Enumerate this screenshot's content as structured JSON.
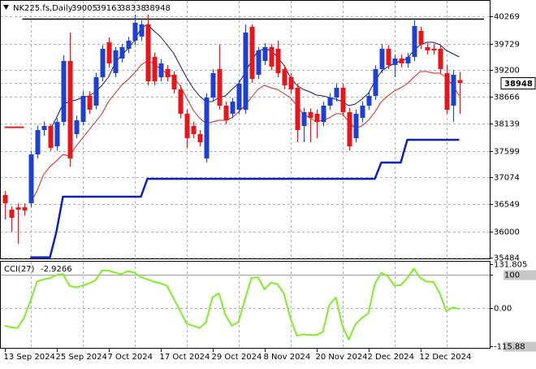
{
  "chart_data": {
    "type": "candlestick",
    "title": "NK225.fs,Daily",
    "categories": [
      "13 Sep 2024",
      null,
      null,
      null,
      null,
      null,
      null,
      null,
      "25 Sep 2024",
      null,
      null,
      null,
      null,
      null,
      null,
      null,
      "7 Oct 2024",
      null,
      null,
      null,
      null,
      null,
      null,
      null,
      "17 Oct 2024",
      null,
      null,
      null,
      null,
      null,
      null,
      null,
      "29 Oct 2024",
      null,
      null,
      null,
      null,
      null,
      null,
      null,
      "8 Nov 2024",
      null,
      null,
      null,
      null,
      null,
      null,
      null,
      "20 Nov 2024",
      null,
      null,
      null,
      null,
      null,
      null,
      null,
      "2 Dec 2024",
      null,
      null,
      null,
      null,
      null,
      null,
      null,
      "12 Dec 2024",
      null,
      null,
      null,
      null,
      null,
      null
    ],
    "ohlc": {
      "open": [
        36725,
        36435,
        36480,
        36483,
        36563,
        37530,
        38013,
        38094,
        37691,
        38174,
        39383,
        37933,
        38174,
        38690,
        38497,
        39061,
        39753,
        39141,
        39431,
        39624,
        39785,
        39866,
        40108,
        39463,
        39061,
        39222,
        39109,
        38819,
        38336,
        38094,
        37933,
        37450,
        38658,
        39222,
        38497,
        38336,
        38416,
        38416,
        40059,
        39109,
        39383,
        39657,
        39624,
        39222,
        39061,
        38851,
        38094,
        38368,
        38336,
        38174,
        38497,
        38658,
        38851,
        38368,
        37852,
        38255,
        38497,
        38690,
        39222,
        39624,
        39302,
        39431,
        39334,
        39463,
        39979,
        39657,
        39624,
        39624,
        39141,
        38497,
        39005
      ],
      "high": [
        36805,
        36500,
        36560,
        36560,
        37600,
        38100,
        38180,
        38130,
        38250,
        39500,
        39947,
        38300,
        38780,
        38780,
        39150,
        39700,
        39850,
        39660,
        39720,
        39860,
        40301,
        40188,
        40301,
        39550,
        39420,
        39300,
        39180,
        38900,
        38420,
        38180,
        38010,
        38740,
        39220,
        39705,
        38580,
        38650,
        39000,
        40108,
        40108,
        39660,
        39740,
        39720,
        39785,
        39300,
        39140,
        38930,
        38450,
        38440,
        38420,
        38580,
        38740,
        38930,
        38930,
        38450,
        38420,
        38580,
        38770,
        39300,
        39720,
        39700,
        39510,
        39510,
        39540,
        40188,
        40060,
        39740,
        39720,
        39700,
        39300,
        39200,
        39163
      ],
      "low": [
        36240,
        36000,
        35760,
        36320,
        36480,
        37450,
        37900,
        37600,
        37600,
        38100,
        37288,
        37850,
        38100,
        38330,
        38420,
        38980,
        39250,
        39060,
        39350,
        39540,
        39700,
        39780,
        38900,
        38900,
        38980,
        38980,
        38740,
        38250,
        37659,
        37850,
        37690,
        37369,
        38580,
        38420,
        38130,
        38250,
        38336,
        38336,
        38950,
        39028,
        39300,
        39200,
        39060,
        38820,
        38740,
        37772,
        37772,
        37772,
        37850,
        38090,
        38410,
        38580,
        38290,
        37610,
        37770,
        38170,
        38410,
        38610,
        39140,
        39220,
        39060,
        39250,
        39250,
        39380,
        39620,
        39510,
        39510,
        39140,
        38338,
        38174,
        38338
      ],
      "close": [
        36563,
        36274,
        36435,
        36420,
        37530,
        38013,
        38094,
        37659,
        38174,
        39383,
        37450,
        38207,
        38690,
        38416,
        39061,
        39624,
        39334,
        39592,
        39657,
        39785,
        40140,
        40108,
        38980,
        38980,
        39334,
        39061,
        38819,
        38336,
        37852,
        37933,
        37772,
        38658,
        39141,
        38497,
        38207,
        38577,
        38932,
        39947,
        39028,
        39592,
        39657,
        39270,
        39141,
        38899,
        38819,
        38013,
        38368,
        38255,
        38174,
        38497,
        38658,
        38851,
        38368,
        37691,
        38336,
        38497,
        38690,
        39222,
        39624,
        39302,
        39431,
        39334,
        39463,
        40075,
        39705,
        39592,
        39592,
        39222,
        38416,
        39109,
        38948
      ]
    },
    "up_color": "#1f3fd0",
    "down_color": "#e8161a",
    "series": [
      {
        "color": "#e01c1c",
        "values": [
          null,
          null,
          null,
          null,
          36563,
          36805,
          37127,
          37288,
          37401,
          37530,
          37498,
          37691,
          37852,
          38013,
          38174,
          38336,
          38577,
          38738,
          38899,
          39012,
          39141,
          39302,
          39383,
          39334,
          39222,
          39141,
          39061,
          38899,
          38658,
          38416,
          38255,
          38142,
          38174,
          38207,
          38207,
          38255,
          38368,
          38497,
          38658,
          38819,
          38899,
          38851,
          38819,
          38738,
          38658,
          38497,
          38336,
          38255,
          38174,
          38207,
          38255,
          38336,
          38336,
          38174,
          38046,
          38094,
          38207,
          38368,
          38577,
          38690,
          38787,
          38851,
          38932,
          39061,
          39173,
          39173,
          39141,
          39141,
          39061,
          38899,
          38690
        ]
      },
      {
        "color": "#0d1b6e",
        "values": [
          null,
          null,
          null,
          null,
          null,
          null,
          null,
          38013,
          38255,
          38529,
          38577,
          38610,
          38658,
          38690,
          38771,
          38899,
          39061,
          39334,
          39496,
          39624,
          39785,
          40027,
          40108,
          39979,
          39866,
          39705,
          39544,
          39302,
          39061,
          38851,
          38690,
          38577,
          38577,
          38658,
          38690,
          38819,
          38932,
          39141,
          39383,
          39576,
          39624,
          39592,
          39463,
          39302,
          39061,
          38899,
          38819,
          38771,
          38706,
          38690,
          38658,
          38626,
          38577,
          38497,
          38529,
          38626,
          38738,
          38980,
          39173,
          39270,
          39334,
          39383,
          39431,
          39592,
          39705,
          39753,
          39753,
          39705,
          39592,
          39528,
          39463
        ]
      },
      {
        "color": "#0a1fc8",
        "values": [
          null,
          null,
          null,
          null,
          35490,
          35490,
          35490,
          35490,
          36000,
          36692,
          36692,
          36692,
          36692,
          36692,
          36692,
          36692,
          36692,
          36692,
          36692,
          36692,
          36692,
          36692,
          37047,
          37047,
          37047,
          37047,
          37047,
          37047,
          37047,
          37047,
          37047,
          37047,
          37047,
          37047,
          37047,
          37047,
          37047,
          37047,
          37047,
          37047,
          37047,
          37047,
          37047,
          37047,
          37047,
          37047,
          37047,
          37047,
          37047,
          37047,
          37047,
          37047,
          37047,
          37047,
          37047,
          37047,
          37047,
          37047,
          37369,
          37369,
          37369,
          37369,
          37820,
          37820,
          37820,
          37820,
          37820,
          37820,
          37820,
          37820,
          37820
        ]
      },
      {
        "color": "#e01c1c",
        "values": [
          38068,
          38068,
          38068,
          38068,
          null,
          null,
          null,
          null,
          null,
          null,
          null,
          null,
          null,
          null,
          null,
          null,
          null,
          null,
          null,
          null,
          null,
          null,
          null,
          null,
          null,
          null,
          null,
          null,
          null,
          null,
          null,
          null,
          null,
          null,
          null,
          null,
          null,
          null,
          null,
          null,
          null,
          null,
          null,
          null,
          null,
          null,
          null,
          null,
          null,
          null,
          null,
          null,
          null,
          null,
          null,
          null,
          null,
          null,
          null,
          null,
          null,
          null,
          null,
          null,
          null,
          null,
          null,
          null,
          null,
          null,
          null
        ]
      }
    ],
    "hlines": [
      {
        "value": 40220,
        "color": "#000000"
      }
    ],
    "ylim": [
      35468,
      40575
    ],
    "yticks": [
      40269,
      39729,
      39200,
      38666,
      38139,
      37599,
      37074,
      36549,
      36000,
      35484
    ],
    "grid": true,
    "indicator": {
      "type": "line",
      "label": "CCI(27)",
      "color": "#80ee28",
      "ylim": [
        -122,
        139
      ],
      "yticks": [
        131.805,
        100,
        {
          "value": 0,
          "label": "0.00"
        },
        -115.88
      ],
      "values": [
        -53,
        -58,
        -60,
        -30,
        21,
        79,
        86,
        90,
        99,
        102,
        67,
        62,
        67,
        74,
        83,
        113,
        113,
        106,
        102,
        111,
        106,
        93,
        86,
        79,
        74,
        67,
        30,
        -7,
        -46,
        -53,
        -60,
        -44,
        32,
        44,
        -21,
        -53,
        -42,
        25,
        90,
        93,
        56,
        76,
        72,
        44,
        -30,
        -83,
        -79,
        -81,
        -81,
        -72,
        9,
        32,
        -53,
        -95,
        -49,
        -30,
        -16,
        72,
        106,
        95,
        67,
        69,
        90,
        118,
        90,
        79,
        79,
        44,
        -9,
        2,
        -2.9266
      ]
    }
  }
}
